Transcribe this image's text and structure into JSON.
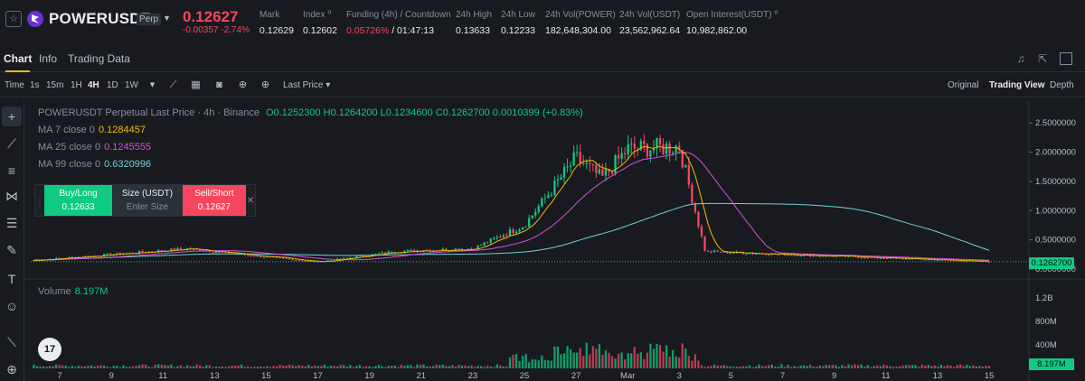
{
  "ticker": {
    "favorite_icon": "star-icon",
    "symbol": "POWERUSDT",
    "badge": "Perp",
    "last_price": "0.12627",
    "change": "-0.00357 -2.74%",
    "stats": [
      {
        "label": "Mark",
        "value": "0.12629"
      },
      {
        "label": "Index ⁰",
        "value": "0.12602"
      },
      {
        "label": "Funding (4h) / Countdown",
        "value_red": "0.05726%",
        "value": " / 01:47:13"
      },
      {
        "label": "24h High",
        "value": "0.13633"
      },
      {
        "label": "24h Low",
        "value": "0.12233"
      },
      {
        "label": "24h Vol(POWER)",
        "value": "182,648,304.00"
      },
      {
        "label": "24h Vol(USDT)",
        "value": "23,562,962.64"
      },
      {
        "label": "Open Interest(USDT) ⁰",
        "value": "10,982,862.00"
      }
    ],
    "colors": {
      "down": "#f6465d",
      "up": "#0ecb81",
      "accent": "#f0b90b"
    }
  },
  "tabs": [
    "Chart",
    "Info",
    "Trading Data"
  ],
  "toolbar": {
    "intervals": [
      "Time",
      "1s",
      "15m",
      "1H",
      "4H",
      "1D",
      "1W"
    ],
    "active_interval": "4H",
    "price_type": "Last Price",
    "views": [
      "Original",
      "Trading View",
      "Depth"
    ],
    "active_view": "Trading View"
  },
  "legend": {
    "title": "POWERUSDT Perpetual Last Price · 4h · Binance",
    "ohlc": "O0.1252300 H0.1264200 L0.1234600 C0.1262700 0.0010399 (+0.83%)",
    "ma7_label": "MA 7 close 0",
    "ma7_value": "0.1284457",
    "ma25_label": "MA 25 close 0",
    "ma25_value": "0.1245555",
    "ma99_label": "MA 99 close 0",
    "ma99_value": "0.6320996",
    "volume_label": "Volume",
    "volume_value": "8.197M"
  },
  "order_panel": {
    "buy_label": "Buy/Long",
    "buy_price": "0.12633",
    "size_label": "Size (USDT)",
    "size_placeholder": "Enter Size",
    "sell_label": "Sell/Short",
    "sell_price": "0.12627"
  },
  "price_tag": "0.1262700",
  "volume_tag": "8.197M",
  "tv_logo": "17",
  "chart_data": {
    "type": "candlestick",
    "title": "POWERUSDT Perpetual Last Price · 4h · Binance",
    "y_ticks": [
      "2.5000000",
      "2.0000000",
      "1.5000000",
      "1.0000000",
      "0.5000000",
      "0.0000000"
    ],
    "ylim": [
      0,
      2.75
    ],
    "x_ticks": [
      "7",
      "9",
      "11",
      "13",
      "15",
      "17",
      "19",
      "21",
      "23",
      "25",
      "27",
      "Mar",
      "3",
      "5",
      "7",
      "9",
      "11",
      "13",
      "15"
    ],
    "volume_ticks": [
      "1.2B",
      "800M",
      "400M"
    ],
    "volume_max": 1.4,
    "last_price": 0.12627,
    "key_points": [
      {
        "x": "6",
        "close": 0.15
      },
      {
        "x": "12",
        "close": 0.35
      },
      {
        "x": "14",
        "close": 0.25
      },
      {
        "x": "17",
        "close": 0.12
      },
      {
        "x": "20",
        "close": 0.3
      },
      {
        "x": "23",
        "close": 0.35
      },
      {
        "x": "25",
        "close": 0.75
      },
      {
        "x": "27",
        "close": 1.9
      },
      {
        "x": "28",
        "close": 1.55
      },
      {
        "x": "Mar",
        "close": 2.05
      },
      {
        "x": "3",
        "close": 2.1
      },
      {
        "x": "4",
        "close": 0.3
      },
      {
        "x": "15",
        "close": 0.126
      }
    ]
  }
}
